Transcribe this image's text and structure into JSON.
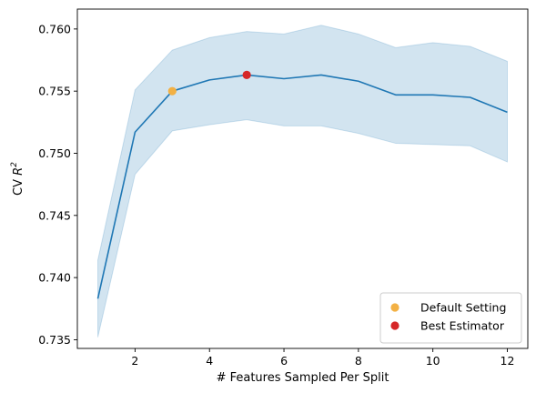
{
  "chart_data": {
    "type": "line",
    "xlabel": "# Features Sampled Per Split",
    "ylabel_prefix": "CV ",
    "ylabel_var": "R",
    "ylabel_sup": "2",
    "xlim": [
      0.45,
      12.55
    ],
    "ylim": [
      0.7343,
      0.7616
    ],
    "xticks": [
      2,
      4,
      6,
      8,
      10,
      12
    ],
    "xtick_labels": [
      "2",
      "4",
      "6",
      "8",
      "10",
      "12"
    ],
    "yticks": [
      0.735,
      0.74,
      0.745,
      0.75,
      0.755,
      0.76
    ],
    "ytick_labels": [
      "0.735",
      "0.740",
      "0.745",
      "0.750",
      "0.755",
      "0.760"
    ],
    "grid": false,
    "legend_position": "lower-right",
    "series": [
      {
        "x": [
          1,
          2,
          3,
          4,
          5,
          6,
          7,
          8,
          9,
          10,
          11,
          12
        ],
        "values": [
          0.7383,
          0.7517,
          0.755,
          0.7559,
          0.7563,
          0.756,
          0.7563,
          0.7558,
          0.7547,
          0.7547,
          0.7545,
          0.7533
        ],
        "upper": [
          0.7414,
          0.7551,
          0.7583,
          0.7593,
          0.7598,
          0.7596,
          0.7603,
          0.7596,
          0.7585,
          0.7589,
          0.7586,
          0.7574
        ],
        "lower": [
          0.7352,
          0.7483,
          0.7518,
          0.7523,
          0.7527,
          0.7522,
          0.7522,
          0.7516,
          0.7508,
          0.7507,
          0.7506,
          0.7493
        ],
        "color": "#1f77b4",
        "band_color": "#1f77b4"
      }
    ],
    "markers": [
      {
        "name": "Default Setting",
        "x": 3,
        "y": 0.755,
        "color": "#f3b144"
      },
      {
        "name": "Best Estimator",
        "x": 5,
        "y": 0.7563,
        "color": "#d62728"
      }
    ]
  }
}
